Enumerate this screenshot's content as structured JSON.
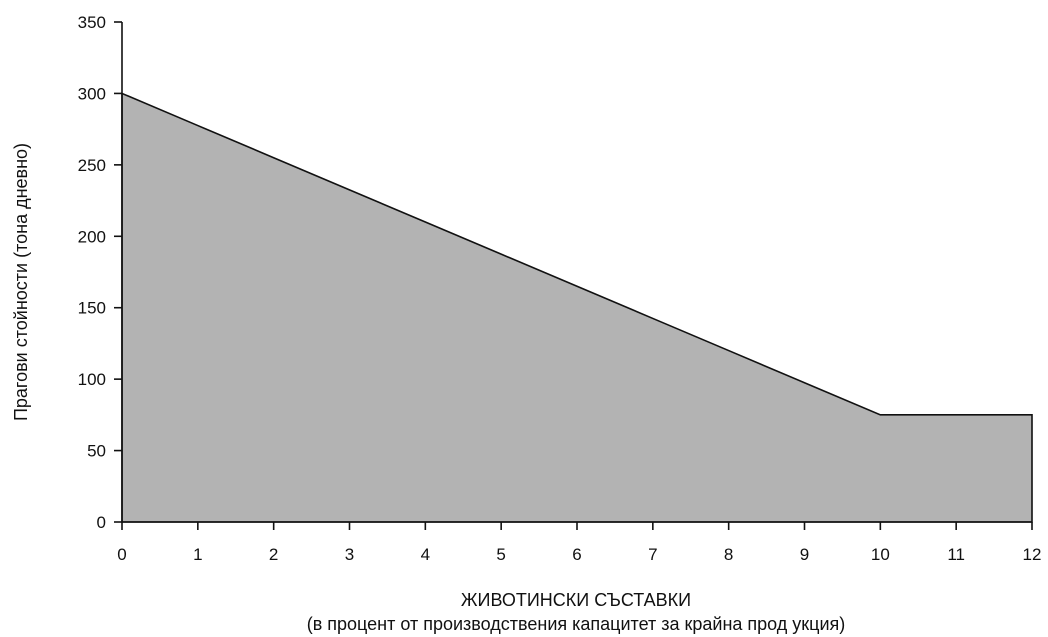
{
  "chart_data": {
    "type": "area",
    "title": "",
    "xlabel": "ЖИВОТИНСКИ СЪСТАВКИ",
    "xlabel_sub": "(в процент от производствения капацитет за крайна прод укция)",
    "ylabel": "Прагови стойности (тона дневно)",
    "xlim": [
      0,
      12
    ],
    "ylim": [
      0,
      350
    ],
    "xticks": [
      0,
      1,
      2,
      3,
      4,
      5,
      6,
      7,
      8,
      9,
      10,
      11,
      12
    ],
    "yticks": [
      0,
      50,
      100,
      150,
      200,
      250,
      300,
      350
    ],
    "grid": false,
    "series": [
      {
        "x": [
          0,
          1,
          2,
          3,
          4,
          5,
          6,
          7,
          8,
          9,
          10,
          11,
          12
        ],
        "values": [
          300,
          277.5,
          255,
          232.5,
          210,
          187.5,
          165,
          142.5,
          120,
          97.5,
          75,
          75,
          75
        ]
      }
    ],
    "colors": {
      "fill": "#b3b3b3",
      "line": "#111111",
      "axis": "#111111"
    }
  }
}
